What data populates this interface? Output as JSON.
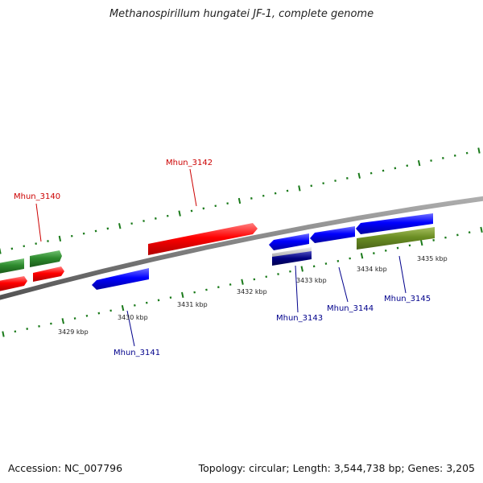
{
  "title": "Methanospirillum hungatei JF-1, complete genome",
  "footer": {
    "accession": "Accession: NC_007796",
    "summary": "Topology: circular; Length: 3,544,738 bp; Genes: 3,205"
  },
  "colors": {
    "highlight_forward": "#ff0000",
    "highlight_reverse": "#0000ff",
    "forward_gene": "#2e8b2e",
    "reverse_gene": "#0000ff",
    "olive_gene": "#6b8e23",
    "tick": "#1a7a1a",
    "backbone": "#808080"
  },
  "scale": {
    "unit": "kbp",
    "labels": [
      {
        "kbp": 3429,
        "text": "3429 kbp"
      },
      {
        "kbp": 3430,
        "text": "3430 kbp"
      },
      {
        "kbp": 3431,
        "text": "3431 kbp"
      },
      {
        "kbp": 3432,
        "text": "3432 kbp"
      },
      {
        "kbp": 3433,
        "text": "3433 kbp"
      },
      {
        "kbp": 3434,
        "text": "3434 kbp"
      },
      {
        "kbp": 3435,
        "text": "3435 kbp"
      }
    ]
  },
  "genes": [
    {
      "label": "Mhun_3140",
      "strand": "+",
      "highlight": true
    },
    {
      "label": "Mhun_3141",
      "strand": "-",
      "highlight": true
    },
    {
      "label": "Mhun_3142",
      "strand": "+",
      "highlight": true
    },
    {
      "label": "Mhun_3143",
      "strand": "-",
      "highlight": true
    },
    {
      "label": "Mhun_3144",
      "strand": "-",
      "highlight": true
    },
    {
      "label": "Mhun_3145",
      "strand": "-",
      "highlight": true
    }
  ]
}
